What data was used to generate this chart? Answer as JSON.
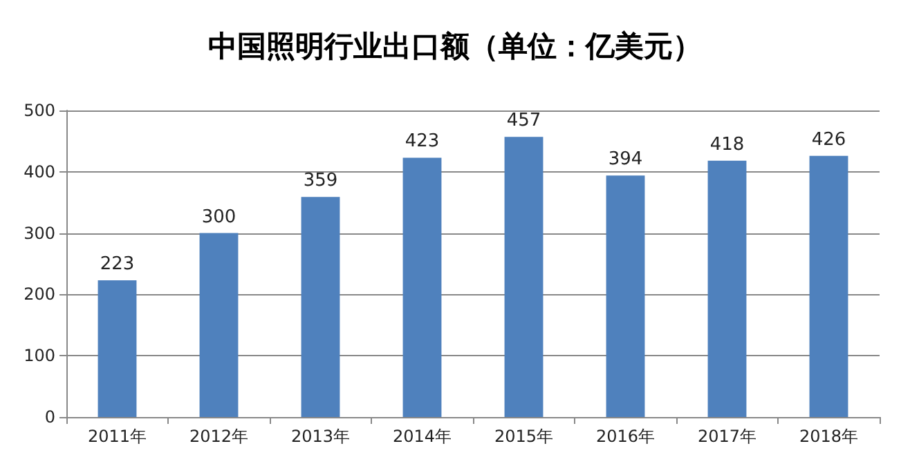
{
  "chart_data": {
    "type": "bar",
    "title": "中国照明行业出口额（单位：亿美元）",
    "categories": [
      "2011年",
      "2012年",
      "2013年",
      "2014年",
      "2015年",
      "2016年",
      "2017年",
      "2018年"
    ],
    "values": [
      223,
      300,
      359,
      423,
      457,
      394,
      418,
      426
    ],
    "color": "#4f81bd",
    "ylim": [
      0,
      500
    ],
    "yticks": [
      0,
      100,
      200,
      300,
      400,
      500
    ],
    "grid": "y",
    "data_labels": true
  }
}
